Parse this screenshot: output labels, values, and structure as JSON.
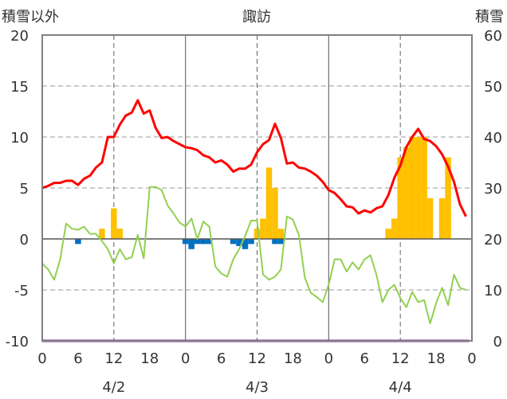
{
  "chart_data": {
    "type": "line+bar",
    "title": "諏訪",
    "ylabel_left": "積雪以外",
    "ylabel_right": "積雪",
    "ylim_left": [
      -10,
      20
    ],
    "ylim_right": [
      0,
      60
    ],
    "yticks_left": [
      "20",
      "15",
      "10",
      "5",
      "0",
      "-5",
      "-10"
    ],
    "yticks_right": [
      "60",
      "50",
      "40",
      "30",
      "20",
      "10",
      "0"
    ],
    "xlim_hours": [
      0,
      72
    ],
    "xtick_labels": [
      "0",
      "6",
      "12",
      "18",
      "0",
      "6",
      "12",
      "18",
      "0",
      "6",
      "12",
      "18",
      "0"
    ],
    "date_labels": [
      "4/2",
      "4/3",
      "4/4"
    ],
    "grid": "dashed at 12h marks, solid day boundaries, dashed horizontal every 5",
    "colors": {
      "temperature": "#ff0000",
      "other_line": "#92d050",
      "precip_bars": "#ffc000",
      "sunshine_bars": "#0070c0",
      "snow_line": "#7030a0"
    },
    "series": [
      {
        "kind": "line",
        "color_key": "temperature",
        "x": [
          0,
          1,
          2,
          3,
          4,
          5,
          6,
          7,
          8,
          9,
          10,
          11,
          12,
          13,
          14,
          15,
          16,
          17,
          18,
          19,
          20,
          21,
          22,
          23,
          24,
          25,
          26,
          27,
          28,
          29,
          30,
          31,
          32,
          33,
          34,
          35,
          36,
          37,
          38,
          39,
          40,
          41,
          42,
          43,
          44,
          45,
          46,
          47,
          48,
          49,
          50,
          51,
          52,
          53,
          54,
          55,
          56,
          57,
          58,
          59,
          60,
          61,
          62,
          63,
          64,
          65,
          66,
          67,
          68,
          69,
          70,
          71
        ],
        "y": [
          5.0,
          5.2,
          5.5,
          5.5,
          5.7,
          5.7,
          5.3,
          5.9,
          6.2,
          7.0,
          7.5,
          10.0,
          10.0,
          11.2,
          12.1,
          12.4,
          13.6,
          12.3,
          12.6,
          10.9,
          9.9,
          10.0,
          9.6,
          9.3,
          9.0,
          8.9,
          8.7,
          8.2,
          8.0,
          7.5,
          7.7,
          7.3,
          6.6,
          6.9,
          6.9,
          7.3,
          8.5,
          9.3,
          9.7,
          11.3,
          9.9,
          7.4,
          7.5,
          7.0,
          6.9,
          6.6,
          6.2,
          5.6,
          4.8,
          4.5,
          3.9,
          3.2,
          3.1,
          2.5,
          2.8,
          2.6,
          3.0,
          3.2,
          4.3,
          6.0,
          7.2,
          9.0,
          10.0,
          10.8,
          9.8,
          9.6,
          9.1,
          8.3,
          7.1,
          5.6,
          3.4,
          2.2
        ]
      },
      {
        "kind": "line",
        "color_key": "other_line",
        "x": [
          0,
          1,
          2,
          3,
          4,
          5,
          6,
          7,
          8,
          9,
          10,
          11,
          12,
          13,
          14,
          15,
          16,
          17,
          18,
          19,
          20,
          21,
          22,
          23,
          24,
          25,
          26,
          27,
          28,
          29,
          30,
          31,
          32,
          33,
          34,
          35,
          36,
          37,
          38,
          39,
          40,
          41,
          42,
          43,
          44,
          45,
          46,
          47,
          48,
          49,
          50,
          51,
          52,
          53,
          54,
          55,
          56,
          57,
          58,
          59,
          60,
          61,
          62,
          63,
          64,
          65,
          66,
          67,
          68,
          69,
          70,
          71
        ],
        "y": [
          -2.4,
          -3.0,
          -4.0,
          -2.0,
          1.5,
          1.0,
          0.9,
          1.2,
          0.5,
          0.5,
          -0.2,
          -1.0,
          -2.4,
          -1.0,
          -2.0,
          -1.8,
          0.4,
          -1.9,
          5.1,
          5.1,
          4.8,
          3.3,
          2.5,
          1.6,
          1.2,
          2.0,
          0.0,
          1.7,
          1.2,
          -2.7,
          -3.4,
          -3.7,
          -2.0,
          -1.0,
          0.3,
          1.8,
          1.8,
          -3.5,
          -4.0,
          -3.7,
          -3.0,
          2.2,
          1.9,
          0.4,
          -3.8,
          -5.3,
          -5.7,
          -6.2,
          -4.5,
          -2.0,
          -2.0,
          -3.2,
          -2.3,
          -3.0,
          -2.0,
          -1.6,
          -3.5,
          -6.2,
          -5.0,
          -4.5,
          -5.8,
          -6.7,
          -5.2,
          -6.2,
          -6.0,
          -8.3,
          -6.3,
          -4.8,
          -6.5,
          -3.5,
          -4.8,
          -5.0
        ]
      },
      {
        "kind": "line",
        "color_key": "snow_line",
        "axis": "right",
        "x": [
          0,
          71.5
        ],
        "y": [
          0,
          0
        ]
      },
      {
        "kind": "bar",
        "color_key": "precip_bars",
        "x": [
          10,
          11,
          12,
          13,
          14,
          15,
          16,
          17,
          18,
          19,
          20,
          21,
          22,
          23,
          24,
          25,
          26,
          27,
          28,
          29,
          30,
          31,
          32,
          33,
          34,
          35,
          36,
          37,
          38,
          39,
          40,
          41,
          42,
          43,
          44,
          45,
          46,
          47,
          48,
          49,
          50,
          51,
          52,
          53,
          54,
          55,
          56,
          57,
          58,
          59,
          60,
          61,
          62,
          63,
          64,
          65,
          66,
          67,
          68,
          69,
          70,
          71
        ],
        "y": [
          1.0,
          0,
          3.0,
          1.0,
          0,
          0,
          0,
          0,
          0,
          0,
          0,
          0,
          0,
          0,
          0,
          0,
          0,
          0,
          0,
          0,
          0,
          0,
          0,
          0,
          0,
          0,
          1.0,
          2.0,
          7.0,
          5.0,
          1.0,
          0,
          0,
          0,
          0,
          0,
          0,
          0,
          0,
          0,
          0,
          0,
          0,
          0,
          0,
          0,
          0,
          0,
          1.0,
          2.0,
          8.0,
          9.0,
          10.0,
          10.0,
          10.0,
          4.0,
          0,
          4.0,
          8.0,
          0,
          0,
          0
        ]
      },
      {
        "kind": "bar",
        "color_key": "sunshine_bars",
        "x": [
          6,
          24,
          25,
          26,
          27,
          28,
          29,
          30,
          31,
          32,
          33,
          34,
          35,
          36,
          37,
          38,
          39,
          40
        ],
        "y": [
          -0.5,
          -0.5,
          -1.0,
          -0.5,
          -0.5,
          -0.5,
          0,
          0,
          0,
          -0.5,
          -0.7,
          -1.0,
          -0.5,
          0,
          0,
          0,
          -0.5,
          -0.5
        ]
      }
    ]
  }
}
